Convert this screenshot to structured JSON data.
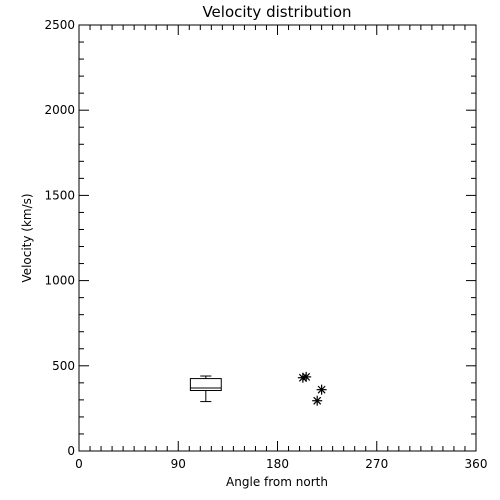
{
  "chart_data": {
    "type": "scatter",
    "title": "Velocity distribution",
    "xlabel": "Angle from north",
    "ylabel": "Velocity (km/s)",
    "xlim": [
      0,
      360
    ],
    "ylim": [
      0,
      2500
    ],
    "xticks": [
      0,
      90,
      180,
      270,
      360
    ],
    "yticks": [
      0,
      500,
      1000,
      1500,
      2000,
      2500
    ],
    "xtick_labels": [
      "0",
      "90",
      "180",
      "270",
      "360"
    ],
    "ytick_labels": [
      "0",
      "500",
      "1000",
      "1500",
      "2000",
      "2500"
    ],
    "grid": false,
    "legend": "none",
    "boxplot": {
      "x_center": 115,
      "x_halfwidth": 14,
      "whisker_low": 290,
      "q1": 355,
      "median": 370,
      "q3": 425,
      "whisker_high": 440
    },
    "points": [
      {
        "x": 203,
        "y": 430
      },
      {
        "x": 206,
        "y": 435
      },
      {
        "x": 220,
        "y": 360
      },
      {
        "x": 216,
        "y": 295
      }
    ]
  }
}
